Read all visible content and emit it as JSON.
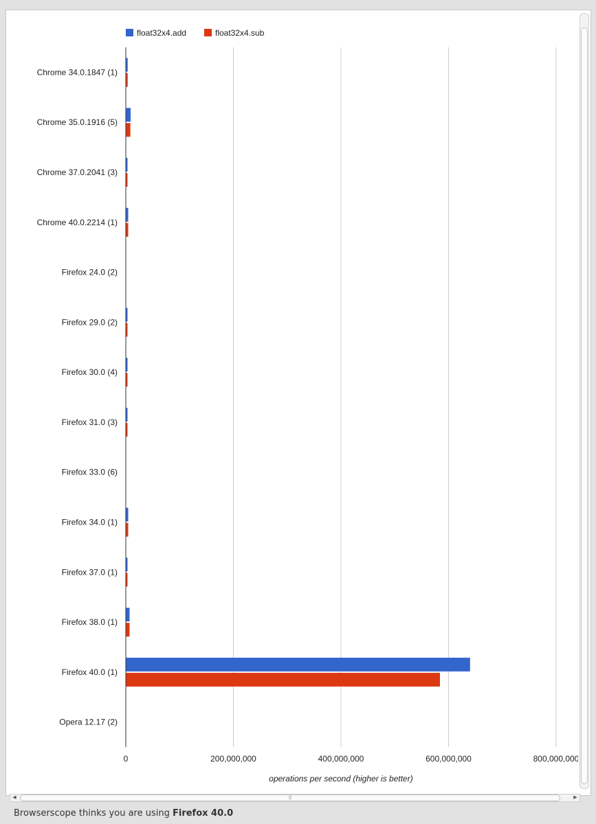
{
  "chart_data": {
    "type": "bar",
    "orientation": "horizontal",
    "categories": [
      "Chrome 34.0.1847 (1)",
      "Chrome 35.0.1916 (5)",
      "Chrome 37.0.2041 (3)",
      "Chrome 40.0.2214 (1)",
      "Firefox 24.0 (2)",
      "Firefox 29.0 (2)",
      "Firefox 30.0 (4)",
      "Firefox 31.0 (3)",
      "Firefox 33.0 (6)",
      "Firefox 34.0 (1)",
      "Firefox 37.0 (1)",
      "Firefox 38.0 (1)",
      "Firefox 40.0 (1)",
      "Opera 12.17 (2)"
    ],
    "series": [
      {
        "name": "float32x4.add",
        "color": "#3366cc",
        "values": [
          3500000,
          9000000,
          2500000,
          4500000,
          0,
          3000000,
          2500000,
          2500000,
          0,
          4500000,
          2500000,
          7000000,
          640000000,
          0
        ]
      },
      {
        "name": "float32x4.sub",
        "color": "#dc3912",
        "values": [
          3500000,
          8500000,
          2500000,
          4500000,
          0,
          3000000,
          2500000,
          2500000,
          0,
          4500000,
          3000000,
          7000000,
          584000000,
          0
        ]
      }
    ],
    "xlabel": "operations per second (higher is better)",
    "xlim": [
      0,
      800000000
    ],
    "xticks": [
      "0",
      "200,000,000",
      "400,000,000",
      "600,000,000",
      "800,000,000"
    ],
    "grid": true,
    "legend": "top"
  },
  "status": {
    "prefix": "Browserscope thinks you are using ",
    "browser": "Firefox 40.0"
  }
}
